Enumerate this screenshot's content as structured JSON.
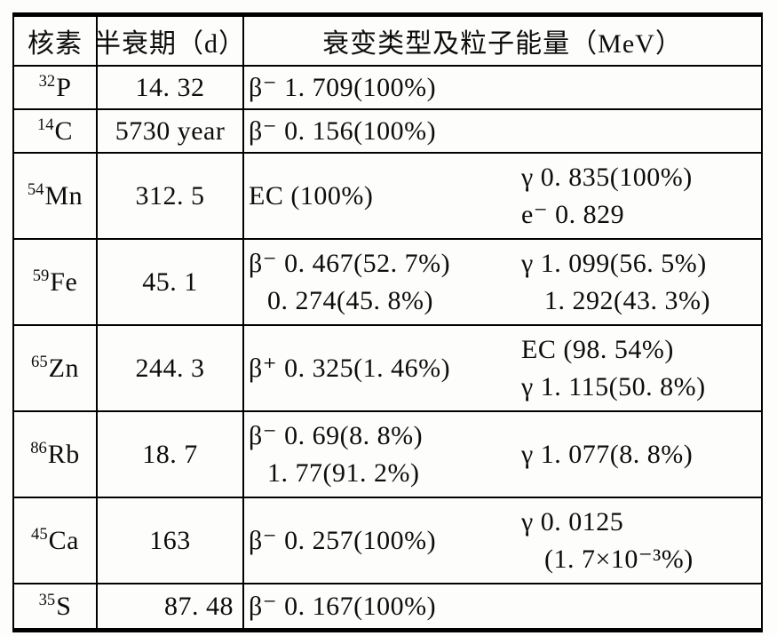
{
  "table": {
    "header": {
      "nuclide": "核素",
      "halflife": "半衰期（d）",
      "decay": "衰变类型及粒子能量（MeV）"
    },
    "rows": [
      {
        "mass": "32",
        "symbol": "P",
        "halflife": "14. 32",
        "left": [
          "β⁻ 1. 709(100%)"
        ],
        "right": []
      },
      {
        "mass": "14",
        "symbol": "C",
        "halflife": "5730 year",
        "left": [
          "β⁻ 0. 156(100%)"
        ],
        "right": []
      },
      {
        "mass": "54",
        "symbol": "Mn",
        "halflife": "312. 5",
        "left": [
          "EC (100%)"
        ],
        "right": [
          "γ 0. 835(100%)",
          "e⁻ 0. 829"
        ]
      },
      {
        "mass": "59",
        "symbol": "Fe",
        "halflife": "45. 1",
        "left": [
          "β⁻ 0. 467(52. 7%)",
          "0. 274(45. 8%)"
        ],
        "right": [
          "γ 1. 099(56. 5%)",
          "1. 292(43. 3%)"
        ]
      },
      {
        "mass": "65",
        "symbol": "Zn",
        "halflife": "244. 3",
        "left": [
          "β⁺ 0. 325(1. 46%)"
        ],
        "right": [
          "EC (98. 54%)",
          "γ 1. 115(50. 8%)"
        ]
      },
      {
        "mass": "86",
        "symbol": "Rb",
        "halflife": "18. 7",
        "left": [
          "β⁻ 0. 69(8. 8%)",
          "1. 77(91. 2%)"
        ],
        "right": [
          "γ 1. 077(8. 8%)"
        ]
      },
      {
        "mass": "45",
        "symbol": "Ca",
        "halflife": "163",
        "left": [
          "β⁻ 0. 257(100%)"
        ],
        "right": [
          "γ 0. 0125",
          "(1. 7×10⁻³%)"
        ]
      },
      {
        "mass": "35",
        "symbol": "S",
        "halflife": "87. 48",
        "left": [
          "β⁻ 0. 167(100%)"
        ],
        "right": []
      }
    ],
    "ink_color": "#0d0d0d",
    "paper_color": "#fdfdfb"
  }
}
